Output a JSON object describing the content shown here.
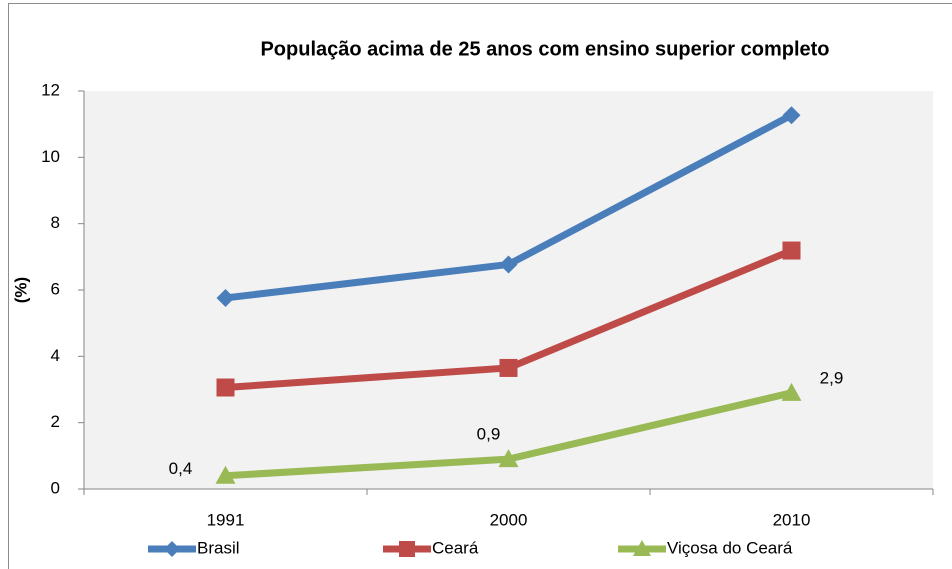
{
  "chart_data": {
    "type": "line",
    "title": "População acima de 25 anos com ensino superior completo",
    "y_label": "(%)",
    "categories": [
      "1991",
      "2000",
      "2010"
    ],
    "series": [
      {
        "name": "Brasil",
        "color": "#4a7ebb",
        "marker": "diamond",
        "values": [
          5.76,
          6.77,
          11.27
        ]
      },
      {
        "name": "Ceará",
        "color": "#be4b48",
        "marker": "square",
        "values": [
          3.06,
          3.65,
          7.19
        ]
      },
      {
        "name": "Viçosa do Ceará",
        "color": "#98b954",
        "marker": "triangle",
        "values": [
          0.4,
          0.9,
          2.9
        ],
        "value_labels": [
          "0,4",
          "0,9",
          "2,9"
        ]
      }
    ],
    "ylim": [
      0,
      12
    ],
    "yticks": [
      0,
      2,
      4,
      6,
      8,
      10,
      12
    ],
    "legend": "bottom"
  }
}
